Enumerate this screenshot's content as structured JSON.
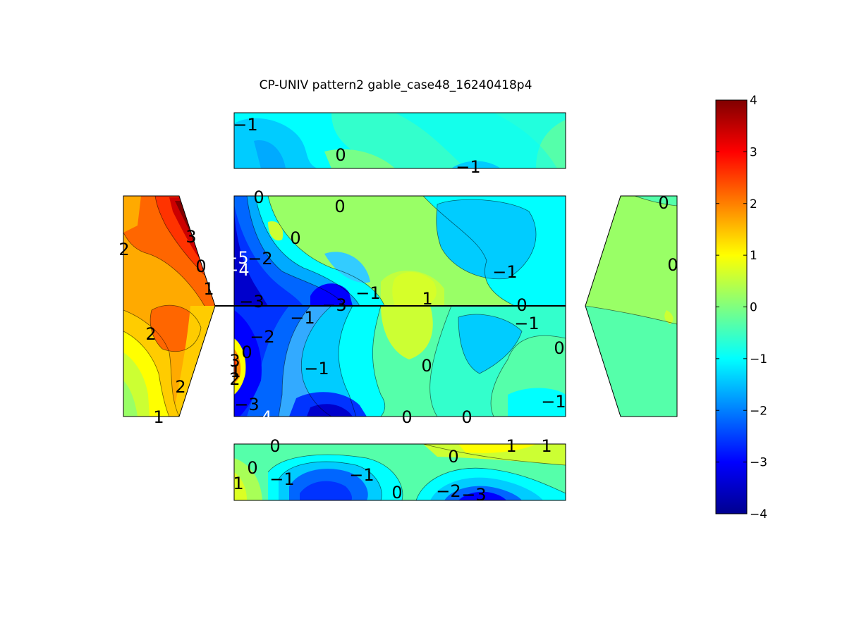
{
  "chart_data": {
    "type": "heatmap",
    "title": "CP-UNIV pattern2 gable_case48_16240418p4",
    "colormap": "jet",
    "clim": [
      -4,
      4
    ],
    "colorbar": {
      "ticks": [
        "4",
        "3",
        "2",
        "1",
        "0",
        "−1",
        "−2",
        "−3",
        "−4"
      ],
      "placement": "right"
    },
    "panels": [
      {
        "name": "top-face",
        "labels": [
          "−1",
          "0",
          "−1"
        ]
      },
      {
        "name": "left-gable",
        "labels": [
          "2",
          "3",
          "0",
          "1",
          "2",
          "2",
          "1"
        ]
      },
      {
        "name": "roof",
        "labels": [
          "0",
          "0",
          "0",
          "−2",
          "−1",
          "−1",
          "1",
          "0",
          "−3",
          "−3",
          "−1",
          "−1",
          "−2",
          "0",
          "0",
          "−1",
          "0",
          "3",
          "1",
          "2",
          "−3",
          "0",
          "0",
          "−1"
        ],
        "labels_white": [
          "−5",
          "−4",
          "−4"
        ]
      },
      {
        "name": "right-gable",
        "labels": [
          "0",
          "0"
        ]
      },
      {
        "name": "bottom-face",
        "labels": [
          "0",
          "0",
          "1",
          "−1",
          "−1",
          "0",
          "0",
          "−2",
          "−3",
          "1",
          "1"
        ]
      }
    ]
  }
}
